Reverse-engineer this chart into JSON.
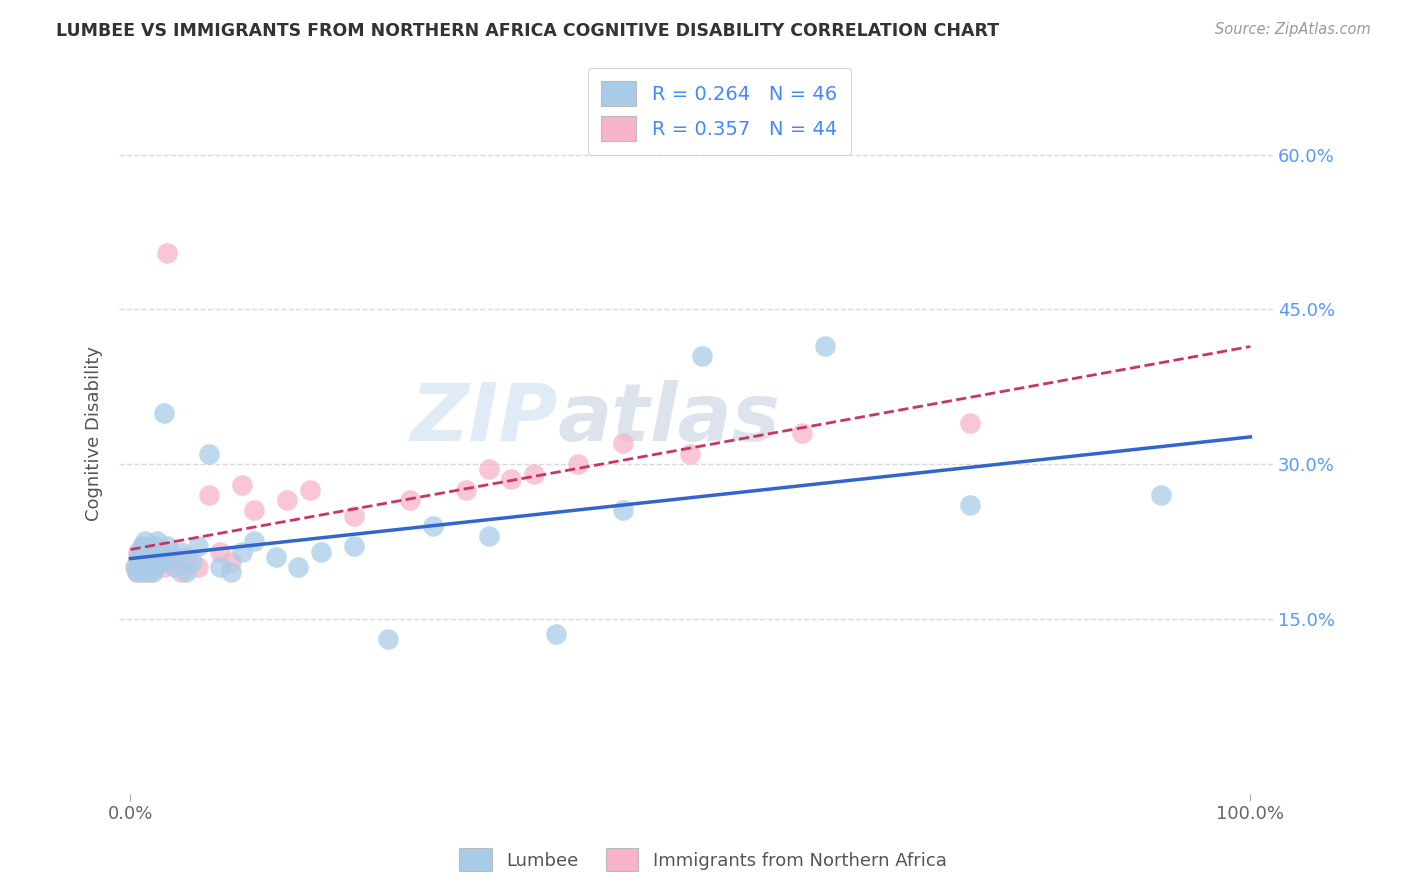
{
  "title": "LUMBEE VS IMMIGRANTS FROM NORTHERN AFRICA COGNITIVE DISABILITY CORRELATION CHART",
  "source": "Source: ZipAtlas.com",
  "ylabel": "Cognitive Disability",
  "watermark_zip": "ZIP",
  "watermark_atlas": "atlas",
  "xlim": [
    -0.01,
    1.02
  ],
  "ylim": [
    -0.02,
    0.68
  ],
  "xtick_positions": [
    0.0,
    1.0
  ],
  "xtick_labels": [
    "0.0%",
    "100.0%"
  ],
  "ytick_values": [
    0.15,
    0.3,
    0.45,
    0.6
  ],
  "ytick_labels": [
    "15.0%",
    "30.0%",
    "45.0%",
    "60.0%"
  ],
  "legend1_label": "Lumbee",
  "legend2_label": "Immigrants from Northern Africa",
  "lumbee_R": 0.264,
  "lumbee_N": 46,
  "nafrica_R": 0.357,
  "nafrica_N": 44,
  "lumbee_color": "#a8cce8",
  "nafrica_color": "#f8b4c8",
  "lumbee_line_color": "#3366cc",
  "nafrica_line_color": "#cc3366",
  "lumbee_x": [
    0.005,
    0.006,
    0.007,
    0.008,
    0.009,
    0.01,
    0.011,
    0.012,
    0.013,
    0.014,
    0.015,
    0.016,
    0.017,
    0.018,
    0.019,
    0.02,
    0.022,
    0.024,
    0.026,
    0.028,
    0.03,
    0.033,
    0.036,
    0.04,
    0.045,
    0.05,
    0.055,
    0.06,
    0.07,
    0.08,
    0.09,
    0.1,
    0.11,
    0.13,
    0.15,
    0.17,
    0.2,
    0.23,
    0.27,
    0.32,
    0.38,
    0.44,
    0.51,
    0.62,
    0.75,
    0.92
  ],
  "lumbee_y": [
    0.2,
    0.195,
    0.21,
    0.205,
    0.215,
    0.22,
    0.2,
    0.195,
    0.225,
    0.21,
    0.205,
    0.215,
    0.2,
    0.21,
    0.22,
    0.195,
    0.2,
    0.225,
    0.215,
    0.205,
    0.35,
    0.22,
    0.21,
    0.2,
    0.215,
    0.195,
    0.205,
    0.22,
    0.31,
    0.2,
    0.195,
    0.215,
    0.225,
    0.21,
    0.2,
    0.215,
    0.22,
    0.13,
    0.24,
    0.23,
    0.135,
    0.255,
    0.405,
    0.415,
    0.26,
    0.27
  ],
  "nafrica_x": [
    0.004,
    0.006,
    0.007,
    0.008,
    0.01,
    0.011,
    0.012,
    0.013,
    0.014,
    0.015,
    0.016,
    0.017,
    0.018,
    0.019,
    0.02,
    0.022,
    0.024,
    0.026,
    0.028,
    0.03,
    0.033,
    0.036,
    0.04,
    0.045,
    0.05,
    0.06,
    0.07,
    0.08,
    0.09,
    0.1,
    0.11,
    0.14,
    0.16,
    0.2,
    0.25,
    0.3,
    0.32,
    0.34,
    0.36,
    0.4,
    0.44,
    0.5,
    0.6,
    0.75
  ],
  "nafrica_y": [
    0.2,
    0.195,
    0.215,
    0.205,
    0.21,
    0.22,
    0.2,
    0.195,
    0.215,
    0.205,
    0.21,
    0.195,
    0.205,
    0.215,
    0.2,
    0.22,
    0.21,
    0.205,
    0.215,
    0.2,
    0.505,
    0.215,
    0.205,
    0.195,
    0.21,
    0.2,
    0.27,
    0.215,
    0.205,
    0.28,
    0.255,
    0.265,
    0.275,
    0.25,
    0.265,
    0.275,
    0.295,
    0.285,
    0.29,
    0.3,
    0.32,
    0.31,
    0.33,
    0.34
  ],
  "background_color": "#ffffff",
  "grid_color": "#d0d0d0"
}
